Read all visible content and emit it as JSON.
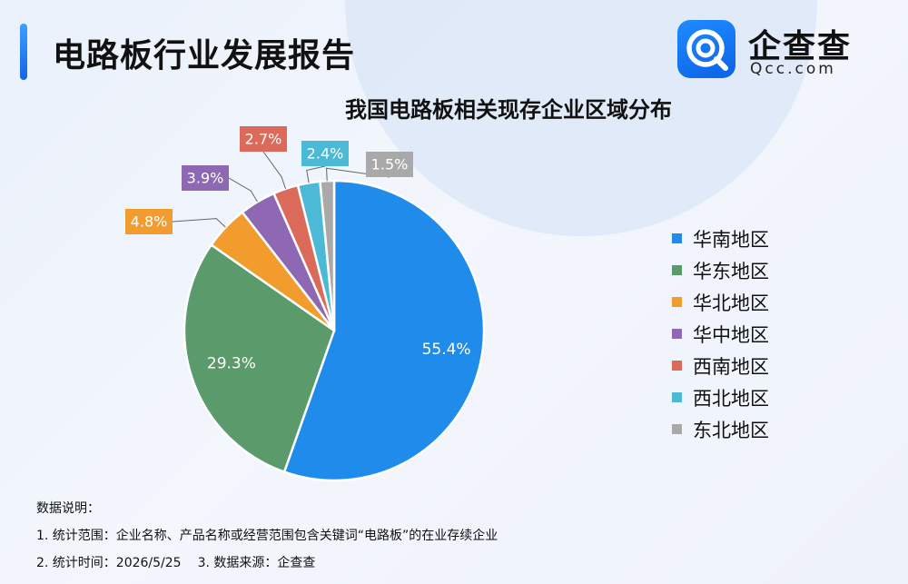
{
  "header": {
    "report_title": "电路板行业发展报告",
    "logo_cn": "企查查",
    "logo_en": "Qcc.com"
  },
  "chart_data": {
    "type": "pie",
    "title": "我国电路板相关现存企业区域分布",
    "legend_position": "right",
    "slices": [
      {
        "name": "华南地区",
        "value": 55.4,
        "label": "55.4%",
        "color": "#1f8ceb"
      },
      {
        "name": "华东地区",
        "value": 29.3,
        "label": "29.3%",
        "color": "#5b9a6a"
      },
      {
        "name": "华北地区",
        "value": 4.8,
        "label": "4.8%",
        "color": "#f39c2e"
      },
      {
        "name": "华中地区",
        "value": 3.9,
        "label": "3.9%",
        "color": "#8e68b2"
      },
      {
        "name": "西南地区",
        "value": 2.7,
        "label": "2.7%",
        "color": "#dc6a5a"
      },
      {
        "name": "西北地区",
        "value": 2.4,
        "label": "2.4%",
        "color": "#4cbad6"
      },
      {
        "name": "东北地区",
        "value": 1.5,
        "label": "1.5%",
        "color": "#a9a9a9"
      }
    ]
  },
  "notes": {
    "heading": "数据说明：",
    "line1": "1. 统计范围：企业名称、产品名称或经营范围包含关键词“电路板”的在业存续企业",
    "line2a": "2. 统计时间：2026/5/25",
    "line2b": "3. 数据来源：企查查"
  }
}
